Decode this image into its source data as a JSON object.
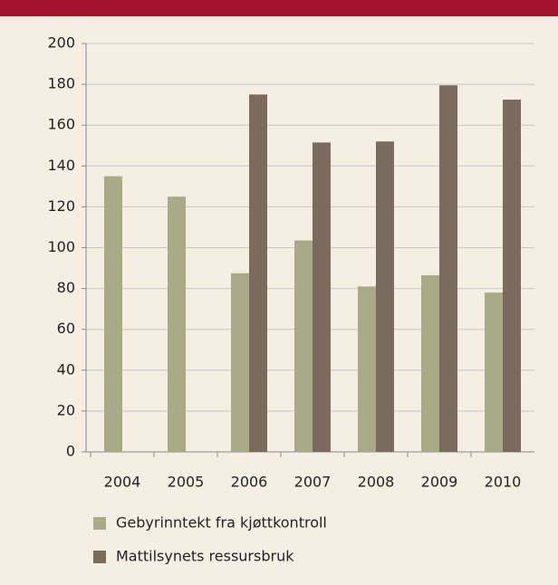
{
  "chart_data": {
    "type": "bar",
    "categories": [
      "2004",
      "2005",
      "2006",
      "2007",
      "2008",
      "2009",
      "2010"
    ],
    "series": [
      {
        "name": "Gebyrinntekt fra kjøttkontroll",
        "color": "#a9ab87",
        "values": [
          135,
          125,
          87.5,
          103.5,
          81,
          86.5,
          78
        ]
      },
      {
        "name": "Mattilsynets ressursbruk",
        "color": "#7b6a5e",
        "values": [
          null,
          null,
          175,
          151.5,
          152,
          179.5,
          172.5
        ]
      }
    ],
    "ylim": [
      0,
      200
    ],
    "yticks": [
      0,
      20,
      40,
      60,
      80,
      100,
      120,
      140,
      160,
      180,
      200
    ],
    "grid": true
  }
}
